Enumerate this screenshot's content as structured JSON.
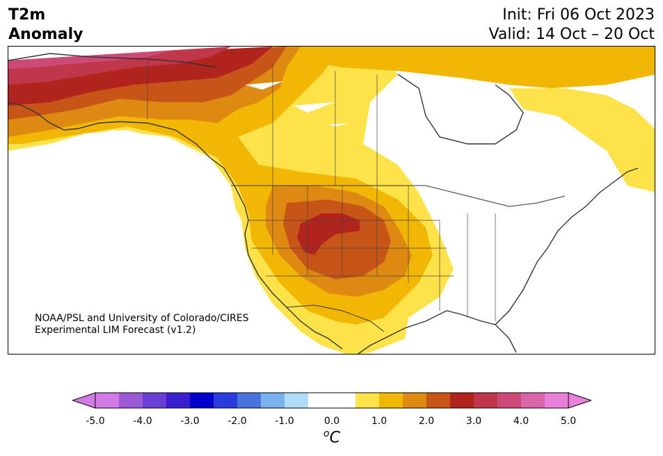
{
  "header": {
    "title_line1": "T2m",
    "title_line2": "Anomaly",
    "init_text": "Init: Fri 06 Oct 2023",
    "valid_text": "Valid: 14 Oct – 20 Oct"
  },
  "map": {
    "region": "North America",
    "variable": "2-meter temperature anomaly",
    "credit_line1": "NOAA/PSL and University of Colorado/CIRES",
    "credit_line2": "Experimental LIM Forecast (v1.2)"
  },
  "colorbar": {
    "unit_label": "C",
    "unit_superscript": "o",
    "tick_labels": [
      "-5.0",
      "-4.0",
      "-3.0",
      "-2.0",
      "-1.0",
      "0.0",
      "1.0",
      "2.0",
      "3.0",
      "4.0",
      "5.0"
    ],
    "colors": [
      "#d27be6",
      "#9b59d6",
      "#6a3fd6",
      "#3b1fcf",
      "#0000cd",
      "#2a3cdb",
      "#4b73e0",
      "#79b1ef",
      "#aedcf7",
      "#ffffff",
      "#ffffff",
      "#fde24a",
      "#f2b705",
      "#de8a12",
      "#c75518",
      "#b1241e",
      "#c0364a",
      "#cc4a78",
      "#d964a8",
      "#e87fd9"
    ],
    "under_color": "#d27be6",
    "over_color": "#e87fd9"
  }
}
